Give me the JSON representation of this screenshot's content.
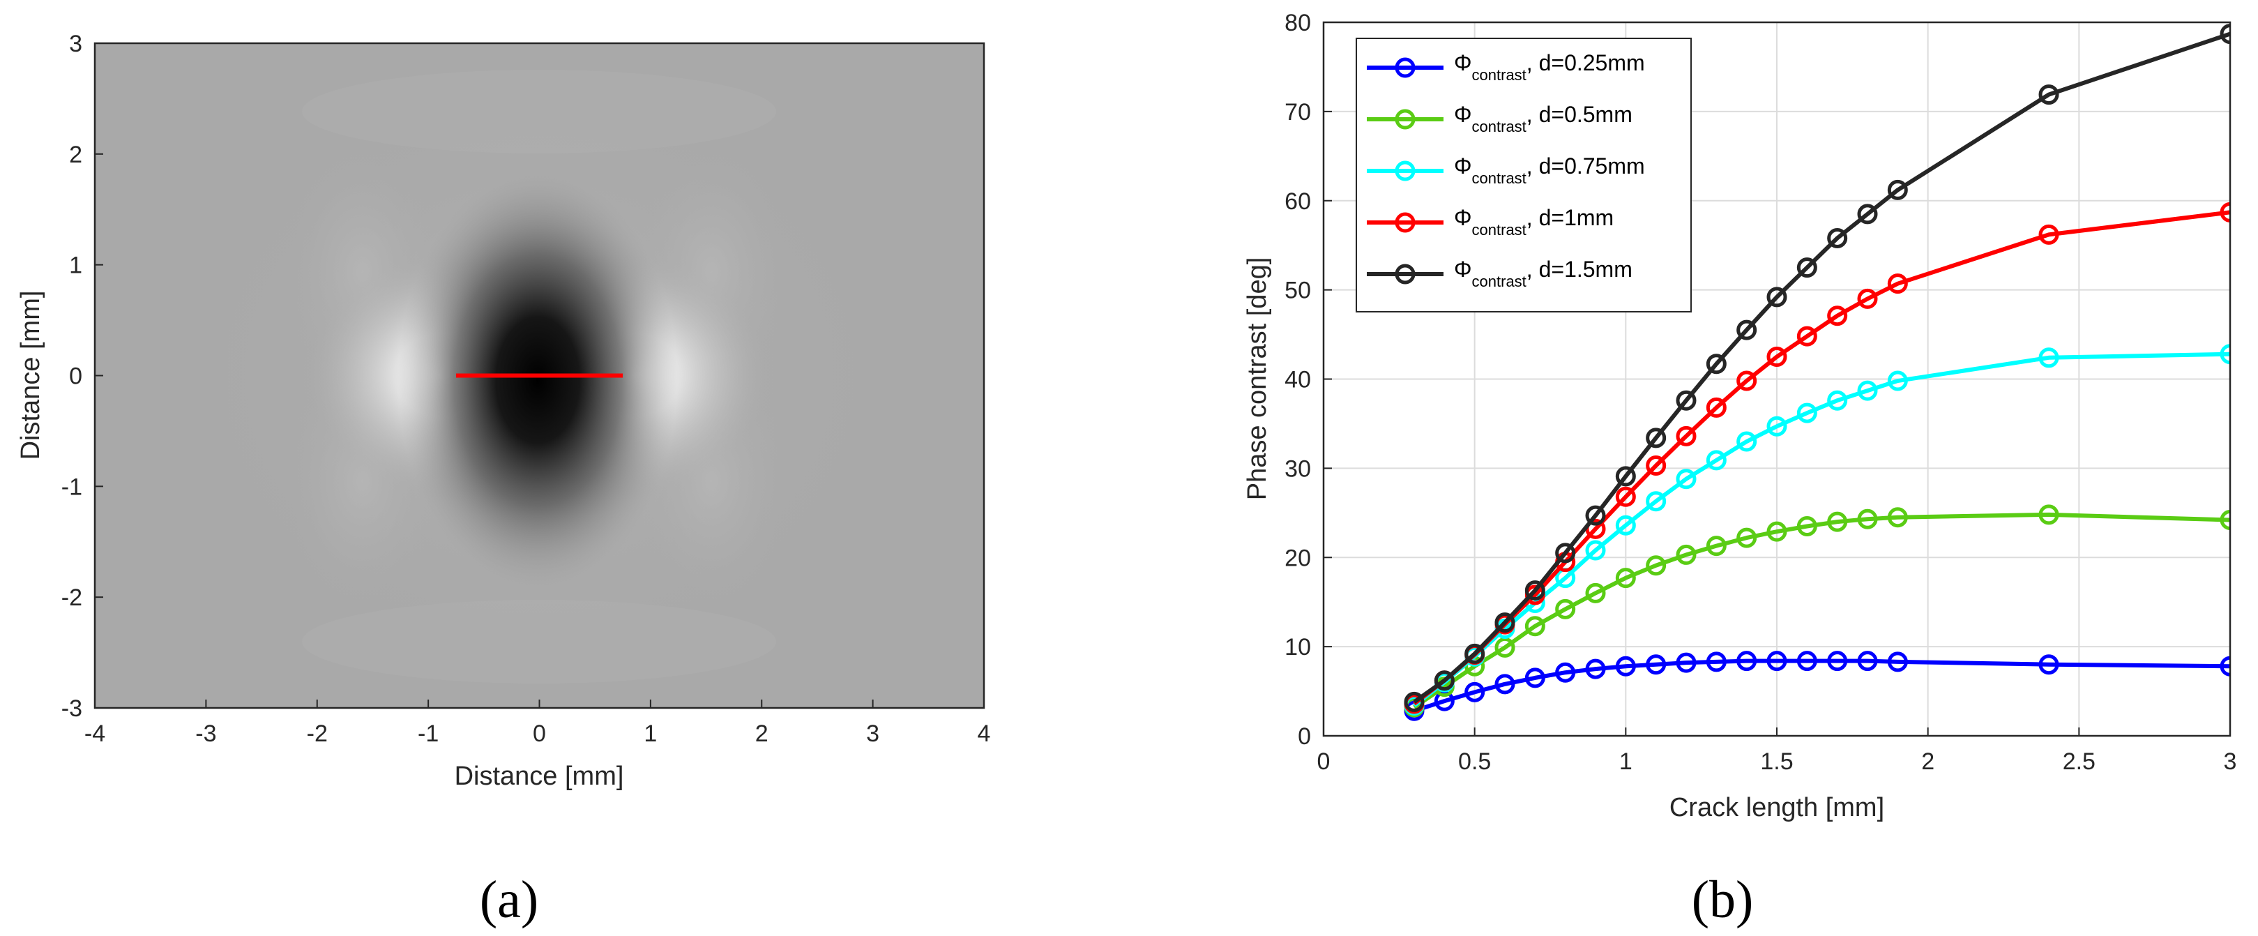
{
  "captions": {
    "a": "(a)",
    "b": "(b)"
  },
  "chart_data": [
    {
      "type": "heatmap",
      "xlabel": "Distance [mm]",
      "ylabel": "Distance [mm]",
      "xlim": [
        -4,
        4
      ],
      "ylim": [
        3,
        -3
      ],
      "xticks": [
        "-4",
        "-3",
        "-2",
        "-1",
        "0",
        "1",
        "2",
        "3",
        "4"
      ],
      "yticks": [
        "-3",
        "-2",
        "-1",
        "0",
        "1",
        "2",
        "3"
      ],
      "crack": {
        "x": [
          -0.75,
          0.75
        ],
        "y": 0,
        "color": "#ff0000"
      },
      "colormap": "gray"
    },
    {
      "type": "line",
      "xlabel": "Crack length [mm]",
      "ylabel": "Phase contrast [deg]",
      "xlim": [
        0,
        3
      ],
      "ylim": [
        0,
        80
      ],
      "grid": true,
      "legend_position": "top-left",
      "xticks": [
        "0",
        "0.5",
        "1",
        "1.5",
        "2",
        "2.5",
        "3"
      ],
      "yticks": [
        "0",
        "10",
        "20",
        "30",
        "40",
        "50",
        "60",
        "70",
        "80"
      ],
      "x": [
        0.3,
        0.4,
        0.5,
        0.6,
        0.7,
        0.8,
        0.9,
        1.0,
        1.1,
        1.2,
        1.3,
        1.4,
        1.5,
        1.6,
        1.7,
        1.8,
        1.9,
        2.4,
        3.0
      ],
      "series": [
        {
          "name_main": "Φ",
          "name_sub": "contrast",
          "name_rest": ", d=0.25mm",
          "color": "#0000ff",
          "values": [
            2.8,
            3.9,
            4.9,
            5.8,
            6.5,
            7.1,
            7.5,
            7.8,
            8.0,
            8.2,
            8.3,
            8.4,
            8.4,
            8.4,
            8.4,
            8.4,
            8.3,
            8.0,
            7.8
          ]
        },
        {
          "name_main": "Φ",
          "name_sub": "contrast",
          "name_rest": ", d=0.5mm",
          "color": "#5acc14",
          "values": [
            3.2,
            5.5,
            7.8,
            9.9,
            12.3,
            14.2,
            16.0,
            17.7,
            19.1,
            20.3,
            21.3,
            22.2,
            22.9,
            23.5,
            24.0,
            24.3,
            24.5,
            24.8,
            24.2
          ]
        },
        {
          "name_main": "Φ",
          "name_sub": "contrast",
          "name_rest": ", d=0.75mm",
          "color": "#00ffff",
          "values": [
            3.4,
            6.0,
            8.9,
            12.0,
            14.9,
            17.7,
            20.8,
            23.6,
            26.3,
            28.8,
            30.9,
            33.0,
            34.7,
            36.2,
            37.6,
            38.7,
            39.8,
            42.4,
            42.8
          ]
        },
        {
          "name_main": "Φ",
          "name_sub": "contrast",
          "name_rest": ", d=1mm",
          "color": "#ff0000",
          "values": [
            3.6,
            6.2,
            9.1,
            12.5,
            15.8,
            19.5,
            23.2,
            26.8,
            30.3,
            33.6,
            36.8,
            39.8,
            42.5,
            44.8,
            47.1,
            49.0,
            50.7,
            56.2,
            58.7
          ]
        },
        {
          "name_main": "Φ",
          "name_sub": "contrast",
          "name_rest": ", d=1.5mm",
          "color": "#262626",
          "values": [
            3.8,
            6.2,
            9.2,
            12.7,
            16.3,
            20.5,
            24.7,
            29.1,
            33.4,
            37.6,
            41.7,
            45.5,
            49.2,
            52.5,
            55.8,
            58.5,
            61.2,
            71.9,
            78.7
          ]
        }
      ]
    }
  ]
}
